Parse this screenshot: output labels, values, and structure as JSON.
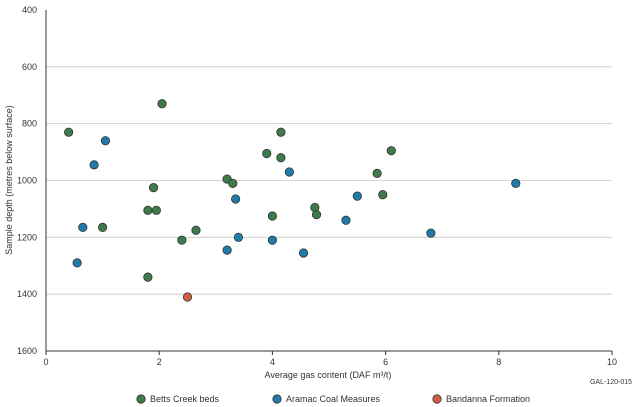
{
  "chart_data": {
    "type": "scatter",
    "title": "",
    "xlabel": "Average gas content (DAF m³/t)",
    "ylabel": "Sample depth (metres below surface)",
    "xlim": [
      0,
      10
    ],
    "ylim": [
      400,
      1600
    ],
    "y_inverted": true,
    "x_ticks": [
      0,
      2,
      4,
      6,
      8,
      10
    ],
    "y_ticks": [
      400,
      600,
      800,
      1000,
      1200,
      1400,
      1600
    ],
    "grid": "horizontal",
    "legend_position": "bottom",
    "reference_code": "GAL-120-015",
    "series": [
      {
        "name": "Betts Creek beds",
        "color": "#3f7a4a",
        "points": [
          [
            0.4,
            830
          ],
          [
            2.05,
            730
          ],
          [
            4.15,
            830
          ],
          [
            3.9,
            905
          ],
          [
            4.15,
            920
          ],
          [
            6.1,
            895
          ],
          [
            5.85,
            975
          ],
          [
            1.9,
            1025
          ],
          [
            3.2,
            995
          ],
          [
            3.3,
            1010
          ],
          [
            5.95,
            1050
          ],
          [
            1.8,
            1105
          ],
          [
            1.95,
            1105
          ],
          [
            4.0,
            1125
          ],
          [
            4.75,
            1095
          ],
          [
            4.78,
            1120
          ],
          [
            1.0,
            1165
          ],
          [
            2.65,
            1175
          ],
          [
            2.4,
            1210
          ],
          [
            1.8,
            1340
          ]
        ]
      },
      {
        "name": "Aramac Coal Measures",
        "color": "#1f7ca8",
        "points": [
          [
            1.05,
            860
          ],
          [
            0.85,
            945
          ],
          [
            4.3,
            970
          ],
          [
            8.3,
            1010
          ],
          [
            5.5,
            1055
          ],
          [
            3.35,
            1065
          ],
          [
            0.65,
            1165
          ],
          [
            5.3,
            1140
          ],
          [
            6.8,
            1185
          ],
          [
            3.4,
            1200
          ],
          [
            4.0,
            1210
          ],
          [
            3.2,
            1245
          ],
          [
            0.55,
            1290
          ],
          [
            4.55,
            1255
          ]
        ]
      },
      {
        "name": "Bandanna Formation",
        "color": "#d25f44",
        "points": [
          [
            2.5,
            1410
          ]
        ]
      }
    ]
  }
}
